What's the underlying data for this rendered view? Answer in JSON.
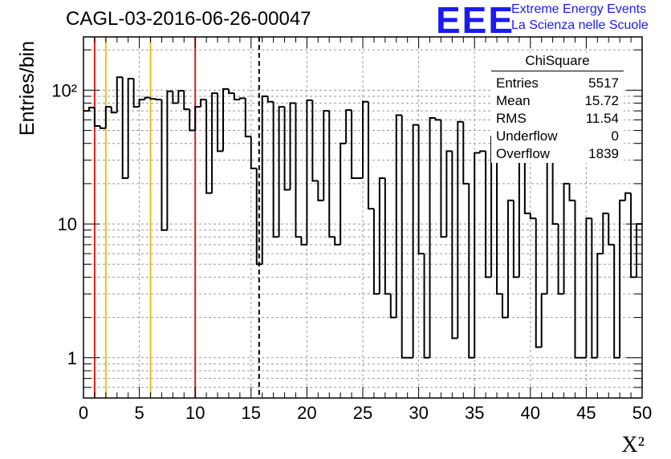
{
  "header": {
    "title": "CAGL-03-2016-06-26-00047",
    "logo_text": "EEE",
    "logo_line1": "Extreme Energy Events",
    "logo_line2": "La Scienza nelle Scuole",
    "logo_color": "#1b1bf0"
  },
  "stats": {
    "title": "ChiSquare",
    "rows": [
      {
        "label": "Entries",
        "value": "5517"
      },
      {
        "label": "Mean",
        "value": "15.72"
      },
      {
        "label": "RMS",
        "value": "11.54"
      },
      {
        "label": "Underflow",
        "value": "0"
      },
      {
        "label": "Overflow",
        "value": "1839"
      }
    ]
  },
  "chart_data": {
    "type": "histogram",
    "title": "CAGL-03-2016-06-26-00047",
    "xlabel": "X²",
    "ylabel": "Entries/bin",
    "xlim": [
      0,
      50
    ],
    "ylim": [
      0.5,
      250
    ],
    "yscale": "log",
    "grid": true,
    "bin_width": 0.5,
    "xticks": [
      "0",
      "5",
      "10",
      "15",
      "20",
      "25",
      "30",
      "35",
      "40",
      "45",
      "50"
    ],
    "yticks": [
      "1",
      "10",
      "10²"
    ],
    "values": [
      70,
      74,
      54,
      52,
      75,
      68,
      125,
      22,
      122,
      75,
      85,
      88,
      86,
      85,
      9,
      98,
      80,
      99,
      72,
      50,
      75,
      85,
      17,
      95,
      35,
      102,
      95,
      85,
      87,
      45,
      26,
      5,
      90,
      82,
      8,
      75,
      18,
      80,
      8,
      7,
      84,
      21,
      15,
      70,
      8,
      7,
      40,
      71,
      22,
      22,
      82,
      13,
      3,
      22,
      3,
      2,
      65,
      1,
      1,
      55,
      6,
      1,
      62,
      60,
      8,
      35,
      1.4,
      58,
      20,
      1,
      34,
      35,
      4,
      45,
      3,
      2,
      15,
      4,
      34,
      12,
      11,
      1.2,
      3,
      36,
      10,
      3,
      20,
      15,
      1,
      1,
      11,
      1,
      6,
      12,
      7,
      1,
      15,
      17,
      4,
      10
    ],
    "vlines": [
      {
        "x": 1,
        "color": "#dd1f1f",
        "style": "solid"
      },
      {
        "x": 2,
        "color": "#ebc01c",
        "style": "solid"
      },
      {
        "x": 6,
        "color": "#ebc01c",
        "style": "solid"
      },
      {
        "x": 10,
        "color": "#dd1f1f",
        "style": "solid"
      },
      {
        "x": 15.72,
        "color": "#000000",
        "style": "dashed"
      }
    ],
    "legend": "top-right"
  }
}
